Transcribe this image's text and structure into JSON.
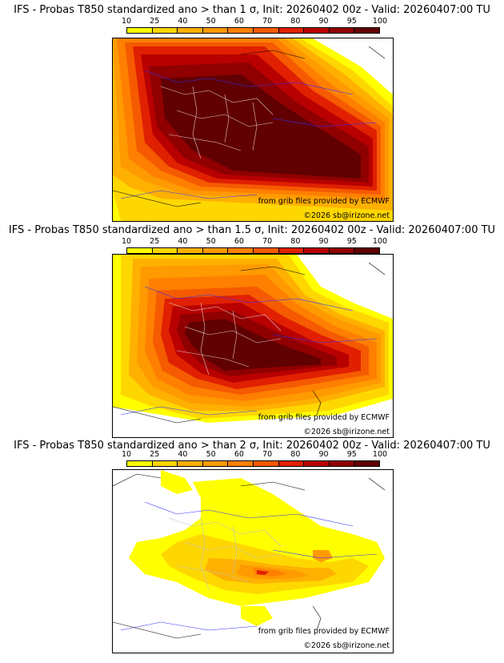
{
  "colors": {
    "c10": "#ffff00",
    "c25": "#ffd700",
    "c40": "#ffb000",
    "c50": "#ff9a00",
    "c60": "#ff7f00",
    "c70": "#f55a00",
    "c80": "#e02000",
    "c90": "#b80000",
    "c95": "#900000",
    "c100": "#600000"
  },
  "colorbar_ticks": [
    "10",
    "25",
    "40",
    "50",
    "60",
    "70",
    "80",
    "90",
    "95",
    "100"
  ],
  "panels": [
    {
      "title": "IFS - Probas T850  standardized ano > than 1 σ, Init: 20260402 00z - Valid: 20260407:00 TU",
      "credit_source": "from grib files provided by ECMWF",
      "credit_copyright": "©2026 sb@irizone.net"
    },
    {
      "title": "IFS - Probas T850  standardized ano > than 1.5 σ, Init: 20260402 00z - Valid: 20260407:00 TU",
      "credit_source": "from grib files provided by ECMWF",
      "credit_copyright": "©2026 sb@irizone.net"
    },
    {
      "title": "IFS - Probas T850  standardized ano > than 2 σ, Init: 20260402 00z - Valid: 20260407:00 TU",
      "credit_source": "from grib files provided by ECMWF",
      "credit_copyright": "©2026 sb@irizone.net"
    }
  ]
}
